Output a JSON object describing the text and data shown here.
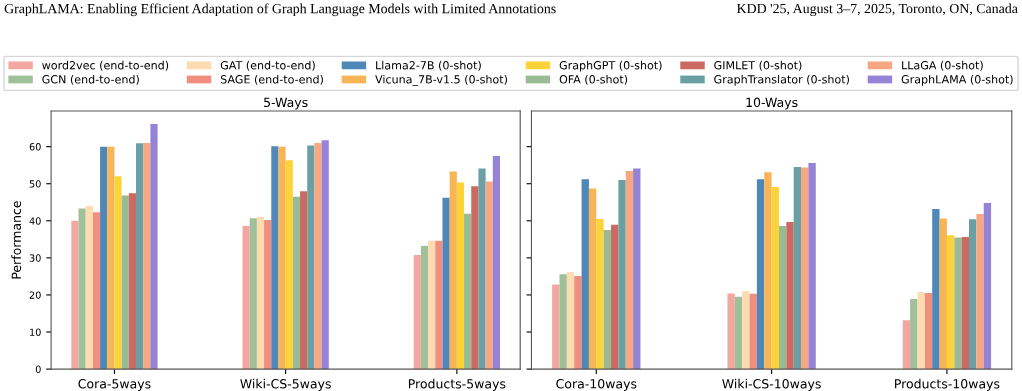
{
  "chart_data": [
    {
      "type": "bar",
      "title": "5-Ways",
      "ylabel": "Performance",
      "annotations": [
        "GraphLAMA: Enabling Efficient Adaptation of Graph Language Models with Limited Annotations",
        "KDD '25, August 3–7, 2025, Toronto, ON, Canada"
      ],
      "categories": [
        "Cora-5ways",
        "Wiki-CS-5ways",
        "Products-5ways"
      ],
      "ylim": [
        0,
        69.6
      ],
      "yticks": [
        0,
        10,
        20,
        30,
        40,
        50,
        60
      ],
      "grid": false,
      "legend": "top",
      "series": [
        {
          "name": "word2vec (end-to-end)",
          "color": "#f4a6a0",
          "values": [
            40,
            38.6,
            30.8
          ]
        },
        {
          "name": "GCN (end-to-end)",
          "color": "#a0c09a",
          "values": [
            43.3,
            40.7,
            33.2
          ]
        },
        {
          "name": "GAT (end-to-end)",
          "color": "#fcdcb0",
          "values": [
            44,
            41,
            34.6
          ]
        },
        {
          "name": "SAGE (end-to-end)",
          "color": "#f08f80",
          "values": [
            42.3,
            40.2,
            34.6
          ]
        },
        {
          "name": "Llama2-7B (0-shot)",
          "color": "#4f88b8",
          "values": [
            60,
            60.1,
            46.2
          ]
        },
        {
          "name": "Vicuna_7B-v1.5 (0-shot)",
          "color": "#f8b555",
          "values": [
            60,
            60,
            53.3
          ]
        },
        {
          "name": "GraphGPT (0-shot)",
          "color": "#fdd33a",
          "values": [
            52,
            56.3,
            50.3
          ]
        },
        {
          "name": "OFA (0-shot)",
          "color": "#99bb94",
          "values": [
            46.8,
            46.5,
            41.9
          ]
        },
        {
          "name": "GIMLET (0-shot)",
          "color": "#cb6a63",
          "values": [
            47.4,
            48,
            49.3
          ]
        },
        {
          "name": "GraphTranslator (0-shot)",
          "color": "#6aa0a4",
          "values": [
            60.9,
            60.3,
            54.1
          ]
        },
        {
          "name": "LLaGA (0-shot)",
          "color": "#f7a882",
          "values": [
            61,
            61,
            50.6
          ]
        },
        {
          "name": "GraphLAMA (0-shot)",
          "color": "#9583d6",
          "values": [
            66.1,
            61.7,
            57.5
          ]
        }
      ]
    },
    {
      "type": "bar",
      "title": "10-Ways",
      "categories": [
        "Cora-10ways",
        "Wiki-CS-10ways",
        "Products-10ways"
      ],
      "ylim": [
        0,
        69.6
      ],
      "yticks": [
        {
          "value": 0,
          "label": null
        },
        {
          "value": 10,
          "label": null
        },
        {
          "value": 20,
          "label": null
        },
        {
          "value": 30,
          "label": null
        },
        {
          "value": 40,
          "label": null
        },
        {
          "value": 50,
          "label": null
        },
        {
          "value": 60,
          "label": null
        }
      ],
      "tick_labels": "x",
      "grid": false,
      "legend": false,
      "series": [
        {
          "color": "#f4a6a0",
          "values": [
            22.8,
            20.4,
            13.2
          ]
        },
        {
          "color": "#a0c09a",
          "values": [
            25.6,
            19.5,
            18.9
          ]
        },
        {
          "color": "#fcdcb0",
          "values": [
            26.1,
            21,
            20.8
          ]
        },
        {
          "color": "#f08f80",
          "values": [
            25.1,
            20.3,
            20.5
          ]
        },
        {
          "color": "#4f88b8",
          "values": [
            51.2,
            51.2,
            43.2
          ]
        },
        {
          "color": "#f8b555",
          "values": [
            48.7,
            53.1,
            40.6
          ]
        },
        {
          "color": "#fdd33a",
          "values": [
            40.5,
            49.1,
            36.1
          ]
        },
        {
          "color": "#99bb94",
          "values": [
            37.5,
            38.6,
            35.5
          ]
        },
        {
          "color": "#cb6a63",
          "values": [
            38.9,
            39.7,
            35.6
          ]
        },
        {
          "color": "#6aa0a4",
          "values": [
            51,
            54.5,
            40.4
          ]
        },
        {
          "color": "#f7a882",
          "values": [
            53.4,
            54.4,
            41.8
          ]
        },
        {
          "color": "#9583d6",
          "values": [
            54.1,
            55.6,
            44.8
          ]
        }
      ]
    }
  ]
}
